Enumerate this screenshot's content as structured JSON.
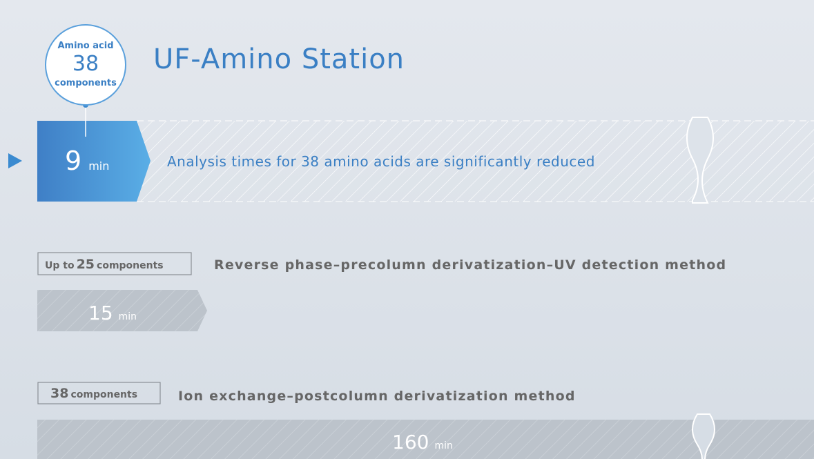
{
  "badge": {
    "line1": "Amino acid",
    "count": 38,
    "line2": "components"
  },
  "title": "UF-Amino Station",
  "rows": [
    {
      "time": 9,
      "unit": "min",
      "description": "Analysis times for 38 amino acids are significantly reduced"
    },
    {
      "tag_prefix": "Up to",
      "tag_count": 25,
      "tag_suffix": "components",
      "method": "Reverse phase–precolumn derivatization–UV detection method",
      "time": 15,
      "unit": "min"
    },
    {
      "tag_count": 38,
      "tag_suffix": "components",
      "method": "Ion exchange–postcolumn derivatization method",
      "time": 160,
      "unit": "min"
    }
  ]
}
